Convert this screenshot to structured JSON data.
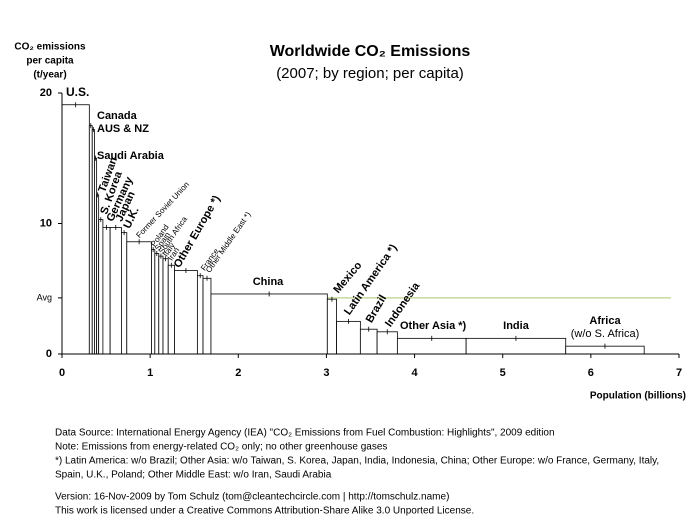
{
  "chart_data": {
    "type": "bar",
    "title": "Worldwide CO₂ Emissions",
    "subtitle": "(2007; by region; per capita)",
    "y_label": [
      "CO₂ emissions",
      "per capita",
      "(t/year)"
    ],
    "x_label": "Population (billions)",
    "categories": [
      "U.S.",
      "Canada",
      "AUS & NZ",
      "Saudi Arabia",
      "Taiwan",
      "S. Korea",
      "Germany",
      "Japan",
      "U.K.",
      "Former Soviet Union",
      "Poland",
      "Spain",
      "South Africa",
      "Italy",
      "Iran",
      "Other Europe *)",
      "France",
      "Other Middle East *)",
      "China",
      "Mexico",
      "Latin America *)",
      "Brazil",
      "Indonesia",
      "Other Asia *)",
      "India",
      "Africa"
    ],
    "values": [
      19.1,
      17.5,
      17.2,
      15.0,
      12.2,
      10.3,
      9.7,
      9.7,
      9.3,
      8.6,
      8.0,
      7.7,
      7.5,
      7.3,
      6.8,
      6.4,
      6.0,
      5.8,
      4.6,
      4.2,
      2.5,
      1.9,
      1.7,
      1.2,
      1.2,
      0.6
    ],
    "widths": [
      0.31,
      0.033,
      0.025,
      0.025,
      0.023,
      0.048,
      0.082,
      0.128,
      0.061,
      0.28,
      0.038,
      0.045,
      0.048,
      0.059,
      0.071,
      0.26,
      0.064,
      0.09,
      1.32,
      0.105,
      0.27,
      0.19,
      0.23,
      0.78,
      1.13,
      0.89
    ],
    "annotations": [
      "(w/o S. Africa)"
    ],
    "color": "#ffffff",
    "edge_color": "#000000",
    "reference_line_color": "#c8d89a",
    "xlim": [
      0,
      7
    ],
    "xticks": [
      0,
      1,
      2,
      3,
      4,
      5,
      6,
      7
    ],
    "ylim": [
      0,
      20
    ],
    "yticks": [
      0,
      {
        "value": 4.3,
        "label": "Avg"
      },
      10,
      20
    ],
    "notes": [
      "Data Source: International Energy Agency (IEA) \"CO₂ Emissions from Fuel Combustion: Highlights\", 2009 edition",
      "Note: Emissions from energy-related CO₂ only; no other greenhouse gases",
      "*) Latin America: w/o Brazil; Other Asia: w/o Taiwan, S. Korea, Japan, India, Indonesia, China; Other Europe: w/o France, Germany, Italy,",
      "Spain, U.K., Poland; Other Middle East: w/o Iran, Saudi Arabia",
      "Version: 16-Nov-2009 by Tom Schulz (tom@cleantechcircle.com | http://tomschulz.name)",
      "This work is licensed under a Creative Commons Attribution-Share Alike 3.0 Unported License."
    ]
  }
}
